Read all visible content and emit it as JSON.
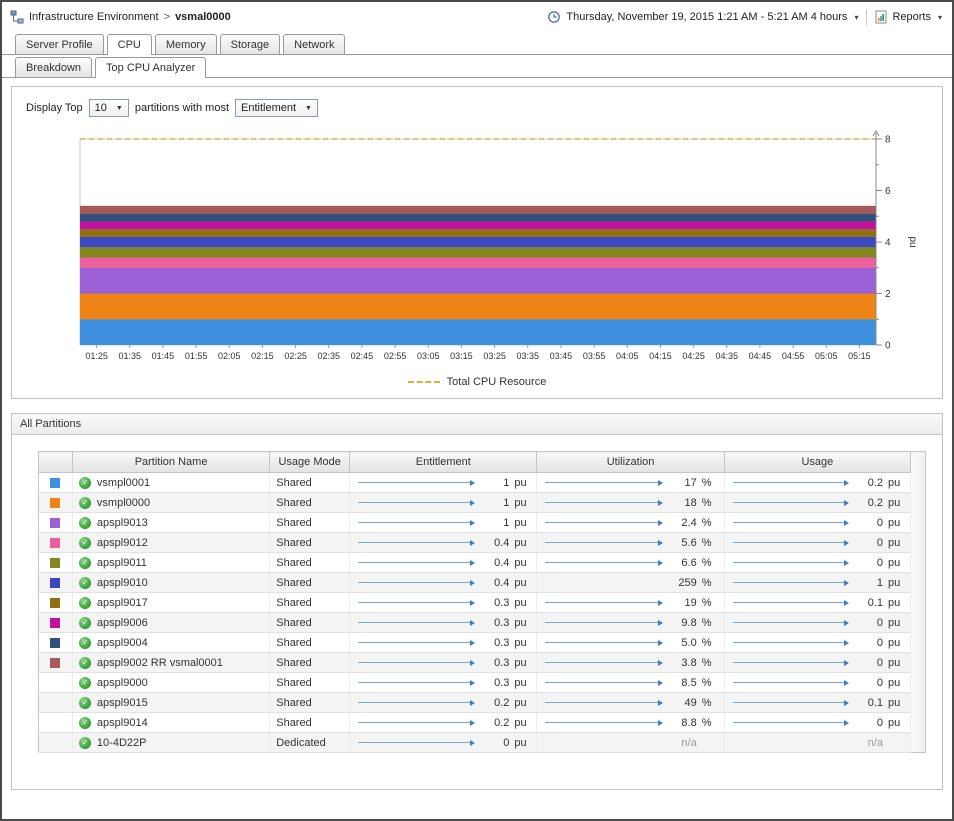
{
  "header": {
    "breadcrumb": {
      "root": "Infrastructure Environment",
      "separator": ">",
      "current": "vsmal0000"
    },
    "timerange": {
      "label": "Thursday, November 19, 2015 1:21 AM - 5:21 AM 4 hours",
      "caret": "▾"
    },
    "reports": {
      "label": "Reports",
      "caret": "▾"
    }
  },
  "tabs": {
    "primary": [
      {
        "label": "Server Profile",
        "active": false
      },
      {
        "label": "CPU",
        "active": true
      },
      {
        "label": "Memory",
        "active": false
      },
      {
        "label": "Storage",
        "active": false
      },
      {
        "label": "Network",
        "active": false
      }
    ],
    "secondary": [
      {
        "label": "Breakdown",
        "active": false
      },
      {
        "label": "Top CPU Analyzer",
        "active": true
      }
    ]
  },
  "controls": {
    "display_top_label": "Display Top",
    "top_count": "10",
    "between_label": "partitions with most",
    "metric": "Entitlement"
  },
  "chart_data": {
    "type": "area",
    "stacked": true,
    "ylabel": "pu",
    "ylim": [
      0,
      8
    ],
    "yticks": [
      0,
      2,
      4,
      6,
      8
    ],
    "grid": false,
    "legend_position": "bottom",
    "x": [
      "01:25",
      "01:35",
      "01:45",
      "01:55",
      "02:05",
      "02:15",
      "02:25",
      "02:35",
      "02:45",
      "02:55",
      "03:05",
      "03:15",
      "03:25",
      "03:35",
      "03:45",
      "03:55",
      "04:05",
      "04:15",
      "04:25",
      "04:35",
      "04:45",
      "04:55",
      "05:05",
      "05:15"
    ],
    "series": [
      {
        "name": "vsmpl0001",
        "color": "#4090e0",
        "value": 1
      },
      {
        "name": "vsmpl0000",
        "color": "#ef8416",
        "value": 1
      },
      {
        "name": "apspl9013",
        "color": "#9c61d6",
        "value": 1
      },
      {
        "name": "apspl9012",
        "color": "#ed5f9d",
        "value": 0.4
      },
      {
        "name": "apspl9011",
        "color": "#86861f",
        "value": 0.4
      },
      {
        "name": "apspl9010",
        "color": "#3d47c0",
        "value": 0.4
      },
      {
        "name": "apspl9017",
        "color": "#8f6f10",
        "value": 0.3
      },
      {
        "name": "apspl9006",
        "color": "#c011a0",
        "value": 0.3
      },
      {
        "name": "apspl9004",
        "color": "#31517c",
        "value": 0.3
      },
      {
        "name": "apspl9002 RR vsmal0001",
        "color": "#a85a5a",
        "value": 0.3
      }
    ],
    "reference_line": {
      "label": "Total CPU Resource",
      "value": 8,
      "color": "#d9b33c",
      "style": "dashed"
    }
  },
  "partitions_panel": {
    "title": "All Partitions",
    "columns": [
      "",
      "Partition Name",
      "Usage Mode",
      "Entitlement",
      "Utilization",
      "Usage"
    ],
    "rows": [
      {
        "color": "#4090e0",
        "name": "vsmpl0001",
        "usage_mode": "Shared",
        "entitlement": {
          "value": "1",
          "unit": "pu",
          "spark": true
        },
        "utilization": {
          "value": "17",
          "unit": "%",
          "spark": true
        },
        "usage": {
          "value": "0.2",
          "unit": "pu",
          "spark": true
        }
      },
      {
        "color": "#ef8416",
        "name": "vsmpl0000",
        "usage_mode": "Shared",
        "entitlement": {
          "value": "1",
          "unit": "pu",
          "spark": true
        },
        "utilization": {
          "value": "18",
          "unit": "%",
          "spark": true
        },
        "usage": {
          "value": "0.2",
          "unit": "pu",
          "spark": true
        }
      },
      {
        "color": "#9c61d6",
        "name": "apspl9013",
        "usage_mode": "Shared",
        "entitlement": {
          "value": "1",
          "unit": "pu",
          "spark": true
        },
        "utilization": {
          "value": "2.4",
          "unit": "%",
          "spark": true
        },
        "usage": {
          "value": "0",
          "unit": "pu",
          "spark": true
        }
      },
      {
        "color": "#ed5f9d",
        "name": "apspl9012",
        "usage_mode": "Shared",
        "entitlement": {
          "value": "0.4",
          "unit": "pu",
          "spark": true
        },
        "utilization": {
          "value": "5.6",
          "unit": "%",
          "spark": true
        },
        "usage": {
          "value": "0",
          "unit": "pu",
          "spark": true
        }
      },
      {
        "color": "#86861f",
        "name": "apspl9011",
        "usage_mode": "Shared",
        "entitlement": {
          "value": "0.4",
          "unit": "pu",
          "spark": true
        },
        "utilization": {
          "value": "6.6",
          "unit": "%",
          "spark": true
        },
        "usage": {
          "value": "0",
          "unit": "pu",
          "spark": true
        }
      },
      {
        "color": "#3d47c0",
        "name": "apspl9010",
        "usage_mode": "Shared",
        "entitlement": {
          "value": "0.4",
          "unit": "pu",
          "spark": true
        },
        "utilization": {
          "value": "259",
          "unit": "%",
          "spark": false
        },
        "usage": {
          "value": "1",
          "unit": "pu",
          "spark": true
        }
      },
      {
        "color": "#8f6f10",
        "name": "apspl9017",
        "usage_mode": "Shared",
        "entitlement": {
          "value": "0.3",
          "unit": "pu",
          "spark": true
        },
        "utilization": {
          "value": "19",
          "unit": "%",
          "spark": true
        },
        "usage": {
          "value": "0.1",
          "unit": "pu",
          "spark": true
        }
      },
      {
        "color": "#c011a0",
        "name": "apspl9006",
        "usage_mode": "Shared",
        "entitlement": {
          "value": "0.3",
          "unit": "pu",
          "spark": true
        },
        "utilization": {
          "value": "9.8",
          "unit": "%",
          "spark": true
        },
        "usage": {
          "value": "0",
          "unit": "pu",
          "spark": true
        }
      },
      {
        "color": "#31517c",
        "name": "apspl9004",
        "usage_mode": "Shared",
        "entitlement": {
          "value": "0.3",
          "unit": "pu",
          "spark": true
        },
        "utilization": {
          "value": "5.0",
          "unit": "%",
          "spark": true
        },
        "usage": {
          "value": "0",
          "unit": "pu",
          "spark": true
        }
      },
      {
        "color": "#a85a5a",
        "name": "apspl9002 RR vsmal0001",
        "usage_mode": "Shared",
        "entitlement": {
          "value": "0.3",
          "unit": "pu",
          "spark": true
        },
        "utilization": {
          "value": "3.8",
          "unit": "%",
          "spark": true
        },
        "usage": {
          "value": "0",
          "unit": "pu",
          "spark": true
        }
      },
      {
        "color": null,
        "name": "apspl9000",
        "usage_mode": "Shared",
        "entitlement": {
          "value": "0.3",
          "unit": "pu",
          "spark": true
        },
        "utilization": {
          "value": "8.5",
          "unit": "%",
          "spark": true
        },
        "usage": {
          "value": "0",
          "unit": "pu",
          "spark": true
        }
      },
      {
        "color": null,
        "name": "apspl9015",
        "usage_mode": "Shared",
        "entitlement": {
          "value": "0.2",
          "unit": "pu",
          "spark": true
        },
        "utilization": {
          "value": "49",
          "unit": "%",
          "spark": true
        },
        "usage": {
          "value": "0.1",
          "unit": "pu",
          "spark": true
        }
      },
      {
        "color": null,
        "name": "apspl9014",
        "usage_mode": "Shared",
        "entitlement": {
          "value": "0.2",
          "unit": "pu",
          "spark": true
        },
        "utilization": {
          "value": "8.8",
          "unit": "%",
          "spark": true
        },
        "usage": {
          "value": "0",
          "unit": "pu",
          "spark": true
        }
      },
      {
        "color": null,
        "name": "10-4D22P",
        "usage_mode": "Dedicated",
        "entitlement": {
          "value": "0",
          "unit": "pu",
          "spark": true
        },
        "utilization": {
          "value": "n/a",
          "unit": "",
          "spark": false,
          "na": true
        },
        "usage": {
          "value": "n/a",
          "unit": "",
          "spark": false,
          "na": true
        }
      }
    ]
  }
}
